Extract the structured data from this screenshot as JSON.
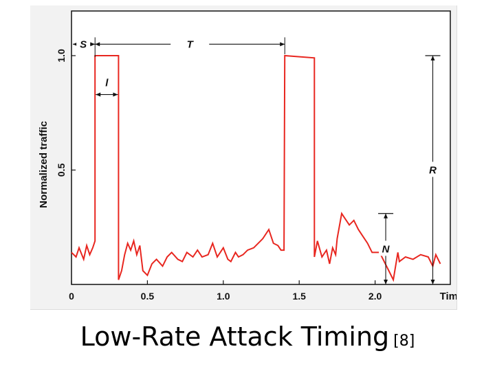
{
  "chart_data": {
    "type": "line",
    "title": "",
    "xlabel": "Time",
    "ylabel": "Normalized traffic",
    "xlim": [
      0,
      2.5
    ],
    "ylim": [
      0,
      1.0
    ],
    "x_ticks": [
      {
        "value": 0,
        "label": "0"
      },
      {
        "value": 0.5,
        "label": "0.5"
      },
      {
        "value": 1.0,
        "label": "1.0"
      },
      {
        "value": 1.5,
        "label": "1.5"
      },
      {
        "value": 2.0,
        "label": "2.0"
      }
    ],
    "y_ticks": [
      {
        "value": 0.5,
        "label": "0.5"
      },
      {
        "value": 1.0,
        "label": "1.0"
      }
    ],
    "grid": false,
    "legend": "none",
    "line_color": "#e8261f",
    "series": [
      {
        "x": [
          0,
          0.03,
          0.05,
          0.08,
          0.1,
          0.12,
          0.14,
          0.15,
          0.155,
          0.155,
          0.31,
          0.31,
          0.33,
          0.35,
          0.37,
          0.39,
          0.41,
          0.43,
          0.45,
          0.47,
          0.5,
          0.53,
          0.56,
          0.6,
          0.63,
          0.66,
          0.7,
          0.73,
          0.76,
          0.8,
          0.83,
          0.86,
          0.9,
          0.93,
          0.96,
          1.0,
          1.03,
          1.05,
          1.08,
          1.1,
          1.13,
          1.16,
          1.2,
          1.23,
          1.26,
          1.3,
          1.33,
          1.36,
          1.38,
          1.4,
          1.405,
          1.405,
          1.6,
          1.6,
          1.62,
          1.65,
          1.68,
          1.7,
          1.72,
          1.74,
          1.75,
          1.78,
          1.8,
          1.83,
          1.86,
          1.89,
          1.92,
          1.95,
          1.98,
          2.0,
          2.03,
          2.06,
          2.09,
          2.12,
          2.14,
          2.15,
          2.16,
          2.2,
          2.25,
          2.3,
          2.35,
          2.38,
          2.4,
          2.43
        ],
        "y": [
          0.14,
          0.12,
          0.16,
          0.11,
          0.17,
          0.13,
          0.16,
          0.18,
          0.19,
          1.0,
          1.0,
          0.02,
          0.06,
          0.13,
          0.18,
          0.15,
          0.19,
          0.13,
          0.17,
          0.06,
          0.04,
          0.09,
          0.11,
          0.08,
          0.12,
          0.14,
          0.11,
          0.1,
          0.14,
          0.12,
          0.15,
          0.12,
          0.13,
          0.18,
          0.12,
          0.16,
          0.11,
          0.1,
          0.14,
          0.12,
          0.13,
          0.15,
          0.16,
          0.18,
          0.2,
          0.24,
          0.18,
          0.17,
          0.15,
          0.15,
          1.0,
          1.0,
          0.99,
          0.12,
          0.19,
          0.12,
          0.15,
          0.09,
          0.16,
          0.13,
          0.2,
          0.31,
          0.29,
          0.26,
          0.28,
          0.24,
          0.21,
          0.18,
          0.14,
          0.14,
          0.14,
          0.1,
          0.06,
          0.02,
          0.1,
          0.14,
          0.1,
          0.12,
          0.11,
          0.13,
          0.12,
          0.08,
          0.13,
          0.09
        ]
      }
    ],
    "annotations": [
      {
        "label": "S",
        "type": "h-dim",
        "from": [
          0,
          1.05
        ],
        "to": [
          0.155,
          1.05
        ]
      },
      {
        "label": "T",
        "type": "h-dim",
        "from": [
          0.155,
          1.05
        ],
        "to": [
          1.405,
          1.05
        ]
      },
      {
        "label": "l",
        "type": "h-dim",
        "from": [
          0.155,
          0.83
        ],
        "to": [
          0.31,
          0.83
        ]
      },
      {
        "label": "R",
        "type": "v-dim",
        "at_x": 2.38,
        "from": 0,
        "to": 1.0
      },
      {
        "label": "N",
        "type": "v-dim",
        "at_x": 2.07,
        "from": 0,
        "to": 0.31
      }
    ]
  },
  "caption": {
    "title": "Low-Rate Attack Timing",
    "ref": "[8]"
  }
}
